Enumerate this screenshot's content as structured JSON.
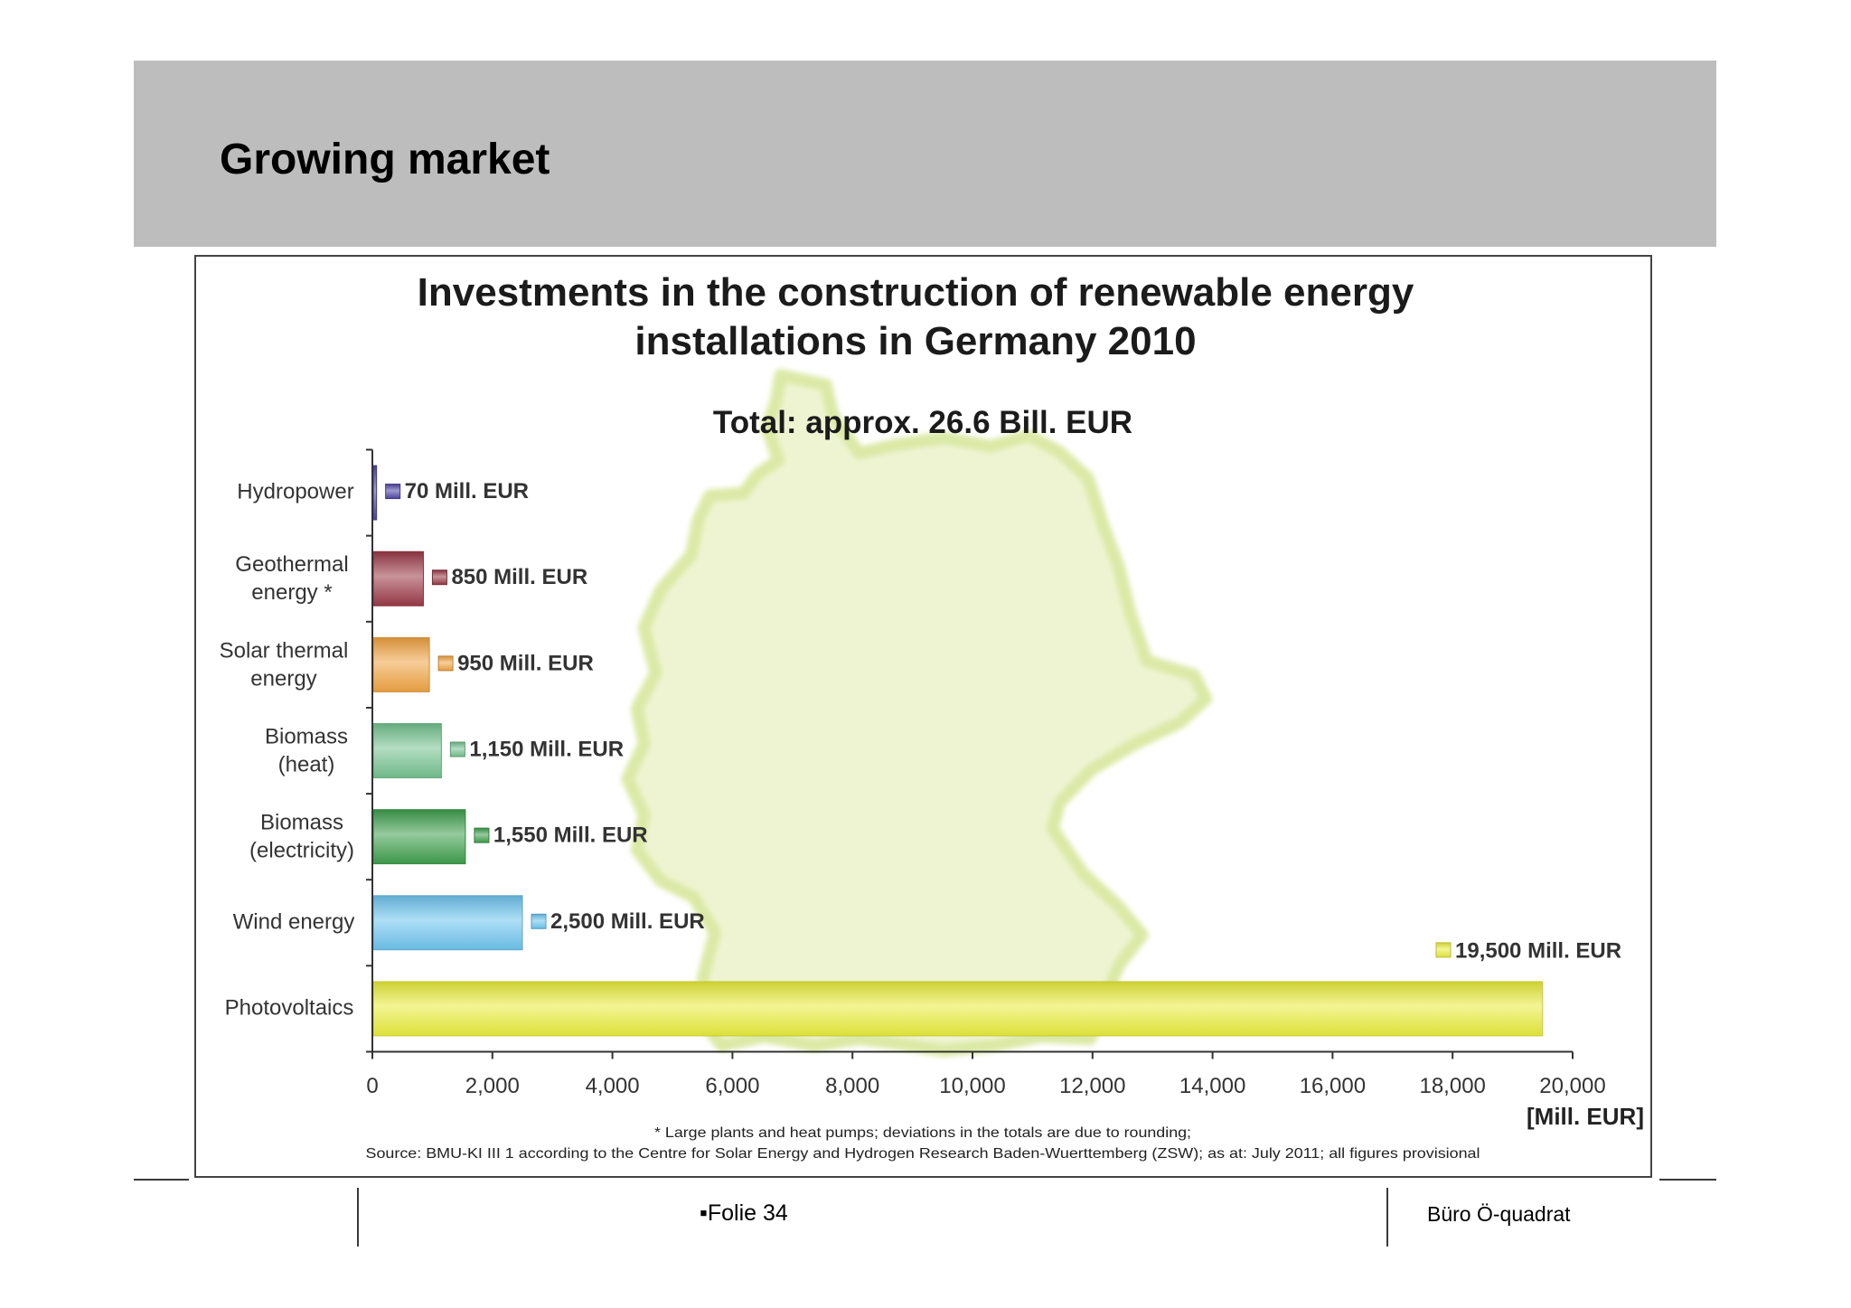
{
  "slide": {
    "title": "Growing market"
  },
  "chart_data": {
    "type": "bar",
    "orientation": "horizontal",
    "title": [
      "Investments in the construction of renewable energy",
      "installations in Germany 2010"
    ],
    "subtitle": "Total: approx. 26.6 Bill. EUR",
    "categories": [
      [
        "Hydropower"
      ],
      [
        "Geothermal",
        "energy *"
      ],
      [
        "Solar thermal",
        "energy"
      ],
      [
        "Biomass",
        "(heat)"
      ],
      [
        "Biomass",
        "(electricity)"
      ],
      [
        "Wind energy"
      ],
      [
        "Photovoltaics"
      ]
    ],
    "values": [
      70,
      850,
      950,
      1150,
      1550,
      2500,
      19500
    ],
    "data_labels": [
      "70 Mill. EUR",
      "850 Mill. EUR",
      "950 Mill. EUR",
      "1,150 Mill. EUR",
      "1,550 Mill. EUR",
      "2,500 Mill. EUR",
      "19,500 Mill. EUR"
    ],
    "colors": [
      "#4f47a6",
      "#9b3a47",
      "#f0a443",
      "#74c28f",
      "#3f9f4d",
      "#6dc4ee",
      "#e9ec3c"
    ],
    "xlim": [
      0,
      20000
    ],
    "xticks": [
      0,
      2000,
      4000,
      6000,
      8000,
      10000,
      12000,
      14000,
      16000,
      18000,
      20000
    ],
    "xtick_labels": [
      "0",
      "2,000",
      "4,000",
      "6,000",
      "8,000",
      "10,000",
      "12,000",
      "14,000",
      "16,000",
      "18,000",
      "20,000"
    ],
    "xlabel": "[Mill. EUR]",
    "grid": false,
    "footnote": "* Large plants and heat pumps; deviations in the totals are due to rounding;",
    "source": "Source: BMU-KI III 1 according to the Centre for Solar Energy and Hydrogen Research Baden-Wuerttemberg (ZSW); as at: July 2011; all figures provisional"
  },
  "footer": {
    "slide_number": "▪Folie 34",
    "company": "Büro Ö-quadrat"
  }
}
